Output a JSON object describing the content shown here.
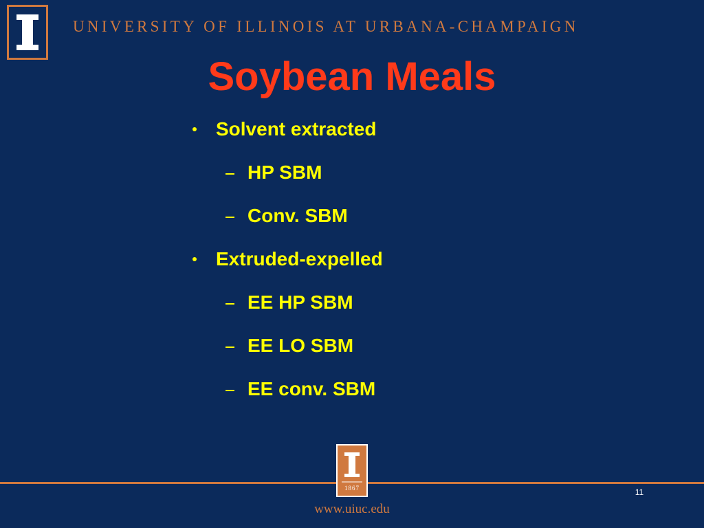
{
  "header": {
    "university": "UNIVERSITY OF ILLINOIS AT URBANA-CHAMPAIGN",
    "title": "Soybean Meals"
  },
  "bullets": [
    {
      "text": "Solvent extracted",
      "subitems": [
        "HP SBM",
        "Conv. SBM"
      ]
    },
    {
      "text": "Extruded-expelled",
      "subitems": [
        "EE HP SBM",
        "EE LO SBM",
        "EE conv. SBM"
      ]
    }
  ],
  "footer": {
    "logo_year": "1867",
    "page_number": "11",
    "url": "www.uiuc.edu"
  }
}
